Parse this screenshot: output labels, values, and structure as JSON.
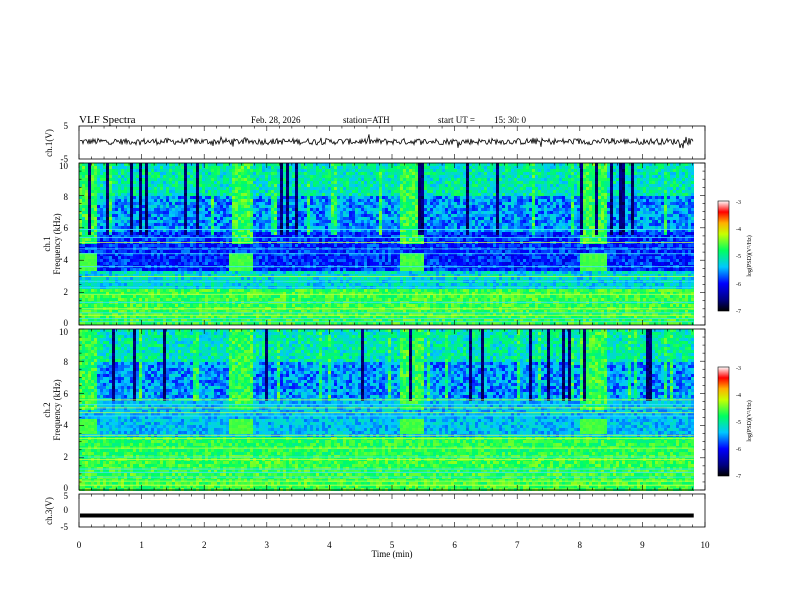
{
  "header": {
    "title": "VLF  Spectra",
    "date": "Feb. 28, 2026",
    "station": "station=ATH",
    "start_label": "start  UT  =",
    "start_time": "15: 30: 0"
  },
  "chart_data": [
    {
      "type": "line",
      "name": "ch1-waveform",
      "ylabel": "ch.1(V)",
      "ylim": [
        -5,
        5
      ],
      "yticks": [
        "5",
        "-5"
      ],
      "x_range_min": [
        0,
        9.82
      ],
      "baseline_value_v": 0.3,
      "noise_amplitude_v": 1.2
    },
    {
      "type": "heatmap",
      "name": "ch1-spectrogram",
      "ylabel_top": "ch.1",
      "ylabel": "Frequency  (kHz)",
      "ylim": [
        0,
        10
      ],
      "yticks": [
        "0",
        "2",
        "4",
        "6",
        "8",
        "10"
      ],
      "x_range_min": [
        0,
        9.82
      ],
      "bright_bursts_min": [
        [
          0,
          0.25
        ],
        [
          2.4,
          2.75
        ],
        [
          5.1,
          5.5
        ],
        [
          8.0,
          8.4
        ]
      ],
      "marker_blocks_min": [
        [
          0,
          0.25
        ],
        [
          2.35,
          2.75
        ],
        [
          5.1,
          5.5
        ],
        [
          7.98,
          8.4
        ]
      ],
      "marker_band_khz": [
        3.4,
        4.4
      ],
      "colorbar": {
        "label": "log(PSD)(V²/Hz)",
        "range": [
          -7,
          -3
        ],
        "ticks": [
          "-3",
          "-4",
          "-5",
          "-6",
          "-7"
        ]
      }
    },
    {
      "type": "heatmap",
      "name": "ch2-spectrogram",
      "ylabel_top": "ch.2",
      "ylabel": "Frequency  (kHz)",
      "ylim": [
        0,
        10
      ],
      "yticks": [
        "0",
        "2",
        "4",
        "6",
        "8",
        "10"
      ],
      "x_range_min": [
        0,
        9.82
      ],
      "bright_bursts_min": [
        [
          0,
          0.25
        ],
        [
          2.35,
          2.75
        ],
        [
          5.1,
          5.5
        ],
        [
          8.0,
          8.4
        ]
      ],
      "marker_blocks_min": [
        [
          0,
          0.25
        ],
        [
          2.35,
          2.75
        ],
        [
          5.1,
          5.5
        ],
        [
          7.98,
          8.4
        ]
      ],
      "marker_band_khz": [
        3.4,
        4.4
      ],
      "colorbar": {
        "label": "log(PSD)(V²/Hz)",
        "range": [
          -7,
          -3
        ],
        "ticks": [
          "-3",
          "-4",
          "-5",
          "-6",
          "-7"
        ]
      }
    },
    {
      "type": "line",
      "name": "ch3-waveform",
      "ylabel": "ch.3(V)",
      "ylim": [
        -5,
        5
      ],
      "yticks": [
        "5",
        "0",
        "-5"
      ],
      "x_range_min": [
        0,
        9.82
      ],
      "constant_value_v": -1.5
    }
  ],
  "xaxis": {
    "label": "Time  (min)",
    "xlim": [
      0,
      10
    ],
    "ticks": [
      "0",
      "1",
      "2",
      "3",
      "4",
      "5",
      "6",
      "7",
      "8",
      "9",
      "10"
    ]
  },
  "colors": {
    "trace": "#000000",
    "frame": "#000000"
  }
}
